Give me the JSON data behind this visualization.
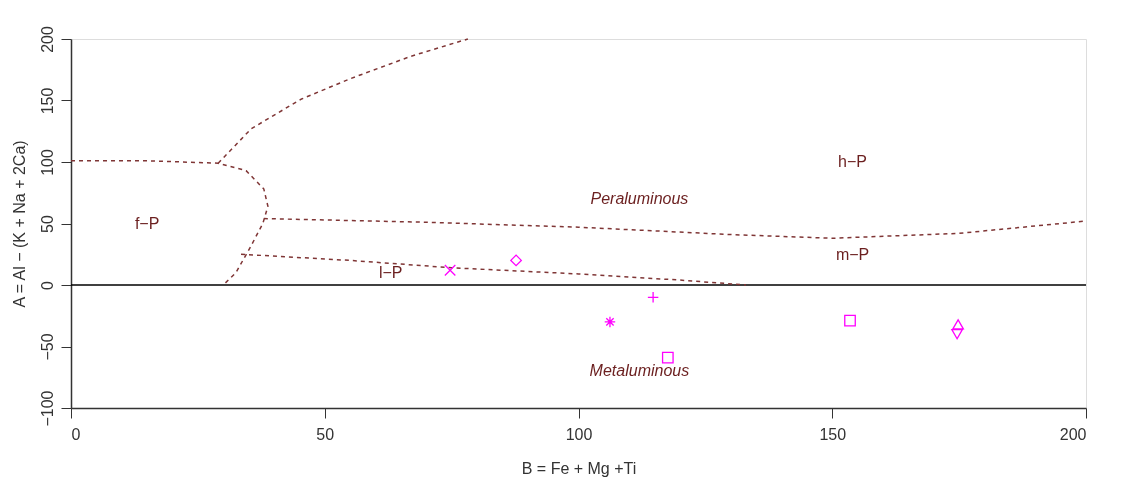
{
  "chart_data": {
    "type": "scatter",
    "xlabel": "B = Fe + Mg +Ti",
    "ylabel": "A = Al − (K + Na + 2Ca)",
    "xlim": [
      0,
      200
    ],
    "ylim": [
      -100,
      200
    ],
    "xticks": [
      0,
      50,
      100,
      150,
      200
    ],
    "yticks": [
      -100,
      -50,
      0,
      50,
      100,
      150,
      200
    ],
    "grid": false,
    "ref_lines": [
      {
        "axis": "y",
        "value": 0,
        "color": "#000000",
        "line_style": "solid"
      }
    ],
    "series": [
      {
        "type": "line",
        "color": "#7f3535",
        "line_style": "dashed",
        "marker": "none",
        "x": [
          0,
          15,
          29,
          34.5,
          38,
          38.8,
          37.8,
          35.5,
          32.5,
          30
        ],
        "values": [
          101,
          101,
          99,
          93,
          78,
          64,
          50,
          32,
          10,
          0
        ]
      },
      {
        "type": "line",
        "color": "#7f3535",
        "line_style": "dashed",
        "marker": "none",
        "x": [
          29,
          35.5,
          45.3,
          55.2,
          67,
          78.2
        ],
        "values": [
          99,
          127,
          151,
          168,
          186,
          200
        ]
      },
      {
        "type": "line",
        "color": "#7f3535",
        "line_style": "dashed",
        "marker": "none",
        "x": [
          38,
          70,
          100,
          130,
          150,
          175,
          200
        ],
        "values": [
          54,
          51,
          47,
          41,
          38,
          42,
          52
        ]
      },
      {
        "type": "line",
        "color": "#7f3535",
        "line_style": "dashed",
        "marker": "none",
        "x": [
          33.5,
          55,
          75,
          100,
          120,
          133
        ],
        "values": [
          25,
          20,
          14,
          9,
          4,
          0
        ]
      },
      {
        "color": "#ff00ff",
        "marker": "cross",
        "x": [
          74.7
        ],
        "values": [
          12
        ]
      },
      {
        "color": "#ff00ff",
        "marker": "diamond",
        "x": [
          87.7
        ],
        "values": [
          20
        ]
      },
      {
        "color": "#ff00ff",
        "marker": "cross",
        "x": [
          106.2
        ],
        "values": [
          -30
        ]
      },
      {
        "color": "#ff00ff",
        "marker": "cross",
        "x": [
          114.7
        ],
        "values": [
          -10
        ]
      },
      {
        "color": "#ff00ff",
        "marker": "square",
        "x": [
          117.6
        ],
        "values": [
          -59
        ]
      },
      {
        "color": "#ff00ff",
        "marker": "square",
        "x": [
          153.5
        ],
        "values": [
          -29
        ]
      },
      {
        "color": "#ff00ff",
        "marker": "triangle",
        "x": [
          174.8
        ],
        "values": [
          -32
        ]
      },
      {
        "color": "#ff00ff",
        "marker": "triangle",
        "x": [
          174.6
        ],
        "values": [
          -40
        ]
      }
    ],
    "annotations": [
      "f−P",
      "h−P",
      "Peraluminous",
      "m−P",
      "l−P",
      "Metaluminous"
    ]
  }
}
